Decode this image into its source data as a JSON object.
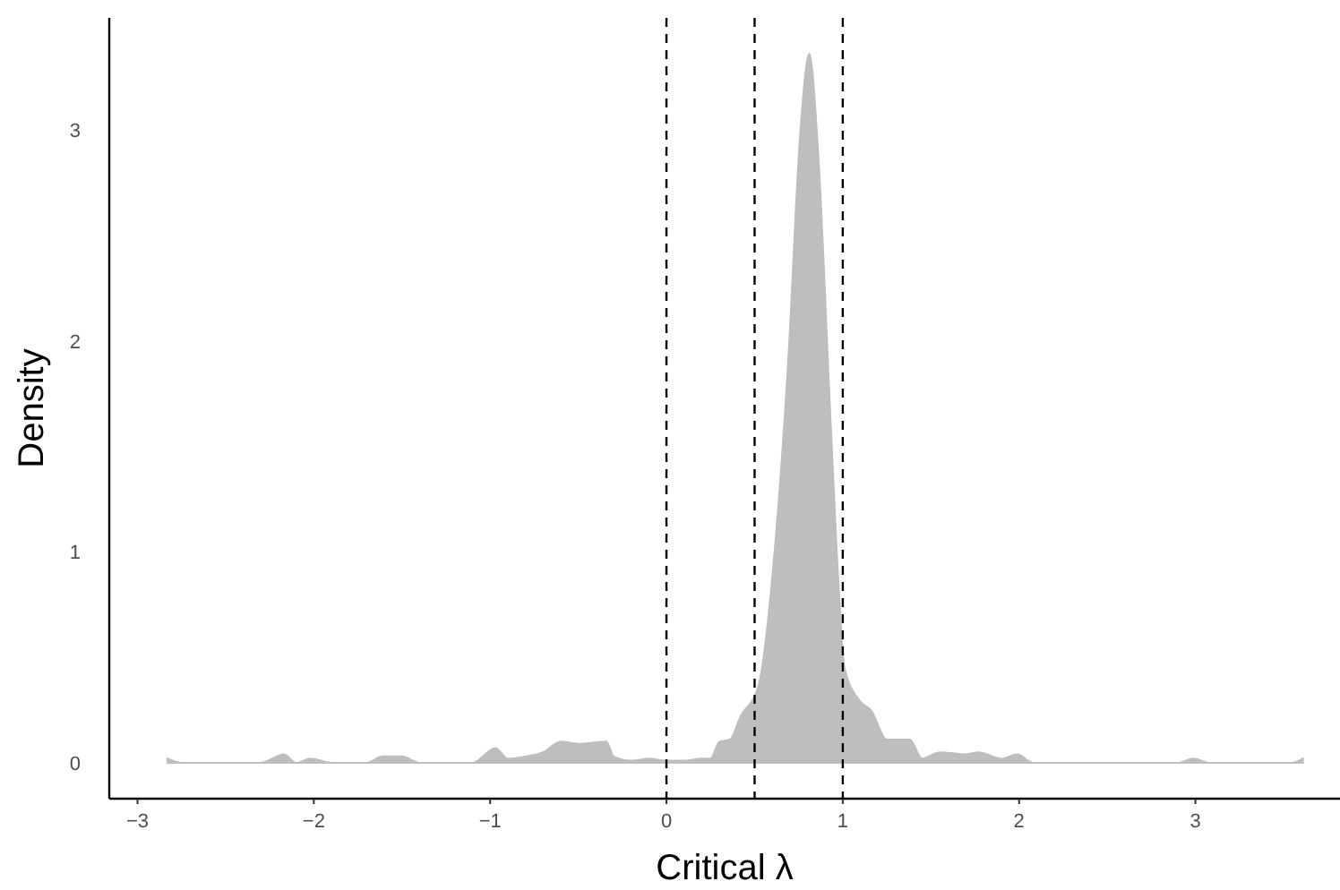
{
  "chart_data": {
    "type": "area",
    "xlabel": "Critical λ",
    "ylabel": "Density",
    "x": [
      -2.83,
      -2.75,
      -2.3,
      -2.17,
      -2.1,
      -2.02,
      -1.9,
      -1.7,
      -1.61,
      -1.5,
      -1.4,
      -1.1,
      -0.97,
      -0.9,
      -0.8,
      -0.7,
      -0.6,
      -0.5,
      -0.34,
      -0.3,
      -0.2,
      -0.1,
      0,
      0.1,
      0.2,
      0.25,
      0.3,
      0.36,
      0.42,
      0.52,
      0.62,
      0.69,
      0.76,
      0.81,
      0.86,
      0.93,
      0.98,
      1.01,
      1.1,
      1.16,
      1.25,
      1.38,
      1.45,
      1.55,
      1.7,
      1.77,
      1.9,
      1.99,
      2.08,
      2.9,
      2.99,
      3.08,
      3.55,
      3.61
    ],
    "series": [
      {
        "color": "#bebebe",
        "values": [
          0.02,
          0,
          0,
          0.04,
          0,
          0.02,
          0,
          0,
          0.03,
          0.03,
          0,
          0,
          0.07,
          0.02,
          0.03,
          0.05,
          0.1,
          0.09,
          0.1,
          0.03,
          0.01,
          0.02,
          0.01,
          0.01,
          0.02,
          0.02,
          0.1,
          0.11,
          0.22,
          0.36,
          1.07,
          1.9,
          3.0,
          3.36,
          2.9,
          1.64,
          0.79,
          0.45,
          0.29,
          0.25,
          0.11,
          0.11,
          0.02,
          0.05,
          0.04,
          0.05,
          0.02,
          0.04,
          0,
          0,
          0.02,
          0,
          0,
          0.02
        ]
      }
    ],
    "xlim": [
      -3.16,
      3.82
    ],
    "ylim": [
      -0.17,
      3.53
    ],
    "xticks": [
      {
        "value": -3,
        "label": "−3"
      },
      {
        "value": -2,
        "label": "−2"
      },
      {
        "value": -1,
        "label": "−1"
      },
      0,
      1,
      2,
      3
    ],
    "yticks": [
      0,
      1,
      2,
      3
    ],
    "ref_lines": [
      {
        "axis": "x",
        "value": 0,
        "color": "#000000",
        "line_style": "dashed"
      },
      {
        "axis": "x",
        "value": 0.5,
        "color": "#000000",
        "line_style": "dashed"
      },
      {
        "axis": "x",
        "value": 1,
        "color": "#000000",
        "line_style": "dashed"
      }
    ],
    "grid": false
  }
}
